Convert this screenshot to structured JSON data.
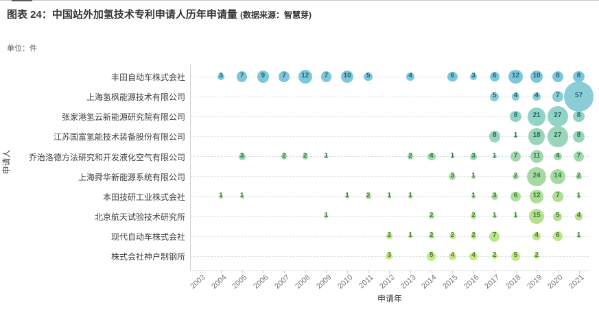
{
  "page": {
    "title": "图表 24：中国站外加氢技术专利申请人历年申请量",
    "title_source": "(数据来源：智慧芽)",
    "unit_label": "单位：件"
  },
  "chart_data": {
    "type": "scatter",
    "subtype": "bubble",
    "title": "中国站外加氢技术专利申请人历年申请量",
    "xlabel": "申请年",
    "ylabel": "申请人",
    "unit": "件",
    "grid": "dashed-horizontal-rows",
    "x": [
      2003,
      2004,
      2005,
      2006,
      2007,
      2008,
      2009,
      2010,
      2011,
      2012,
      2013,
      2014,
      2015,
      2016,
      2017,
      2018,
      2019,
      2020,
      2021
    ],
    "series": [
      {
        "name": "丰田自动车株式会社",
        "bubble_color": "#7ec7db",
        "label_color": "#1d617a",
        "values_by_year": {
          "2004": 3,
          "2005": 7,
          "2006": 9,
          "2007": 7,
          "2008": 12,
          "2009": 7,
          "2010": 10,
          "2011": 5,
          "2013": 4,
          "2015": 6,
          "2016": 3,
          "2017": 6,
          "2018": 12,
          "2019": 10,
          "2020": 8,
          "2021": 8
        }
      },
      {
        "name": "上海氢枫能源技术有限公司",
        "bubble_color": "#8acdd6",
        "label_color": "#1d6174",
        "values_by_year": {
          "2017": 5,
          "2018": 4,
          "2019": 4,
          "2020": 7,
          "2021": 57
        }
      },
      {
        "name": "张家港氢云新能源研究院有限公司",
        "bubble_color": "#93d2c6",
        "label_color": "#1c685c",
        "values_by_year": {
          "2018": 8,
          "2019": 21,
          "2020": 27,
          "2021": 8
        }
      },
      {
        "name": "江苏国富氢能技术装备股份有限公司",
        "bubble_color": "#9ad5bb",
        "label_color": "#226f4f",
        "values_by_year": {
          "2017": 8,
          "2018": 1,
          "2019": 18,
          "2020": 27,
          "2021": 8
        }
      },
      {
        "name": "乔治洛德方法研究和开发液化空气有限公司",
        "bubble_color": "#a0d8ae",
        "label_color": "#2a7742",
        "values_by_year": {
          "2005": 3,
          "2007": 2,
          "2008": 2,
          "2009": 1,
          "2013": 2,
          "2014": 4,
          "2015": 1,
          "2016": 3,
          "2017": 1,
          "2018": 7,
          "2019": 11,
          "2020": 4,
          "2021": 7
        }
      },
      {
        "name": "上海舜华新能源系统有限公司",
        "bubble_color": "#a6daa2",
        "label_color": "#2f7b3a",
        "values_by_year": {
          "2015": 3,
          "2016": 1,
          "2018": 2,
          "2019": 24,
          "2020": 14,
          "2021": 2
        }
      },
      {
        "name": "本田技研工业株式会社",
        "bubble_color": "#aedd97",
        "label_color": "#347e33",
        "values_by_year": {
          "2004": 1,
          "2005": 1,
          "2010": 1,
          "2011": 2,
          "2012": 1,
          "2013": 1,
          "2016": 1,
          "2017": 3,
          "2018": 6,
          "2019": 12,
          "2020": 7,
          "2021": 1
        }
      },
      {
        "name": "北京航天试验技术研究所",
        "bubble_color": "#b6e08f",
        "label_color": "#3a802e",
        "values_by_year": {
          "2009": 1,
          "2014": 2,
          "2016": 2,
          "2017": 1,
          "2018": 1,
          "2019": 15,
          "2020": 5,
          "2021": 4
        }
      },
      {
        "name": "现代自动车株式会社",
        "bubble_color": "#bee489",
        "label_color": "#42822a",
        "values_by_year": {
          "2012": 2,
          "2013": 1,
          "2014": 2,
          "2015": 2,
          "2016": 2,
          "2017": 7,
          "2019": 4,
          "2020": 6,
          "2021": 1
        }
      },
      {
        "name": "株式会社神户制钢所",
        "bubble_color": "#c6e783",
        "label_color": "#4a8427",
        "values_by_year": {
          "2012": 3,
          "2014": 5,
          "2015": 4,
          "2016": 4,
          "2017": 2,
          "2018": 5,
          "2019": 2
        }
      }
    ]
  }
}
